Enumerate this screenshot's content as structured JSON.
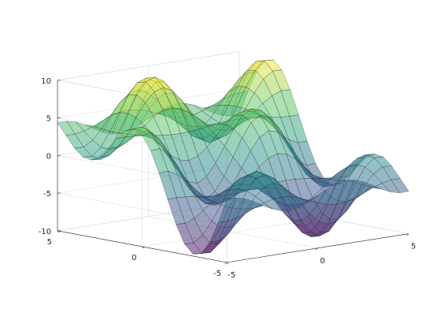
{
  "chart_data": {
    "type": "surface3d",
    "title": "",
    "xlabel": "",
    "ylabel": "",
    "zlabel": "",
    "function": "z = 5 * sin(x) * cos(y) + 5 * sin(y / 2)",
    "x_range": [
      -5,
      5
    ],
    "y_range": [
      -5,
      5
    ],
    "z_range": [
      -10,
      10
    ],
    "grid_size": 21,
    "x_ticks": [
      {
        "value": -5,
        "label": "-5"
      },
      {
        "value": 0,
        "label": "0"
      },
      {
        "value": 5,
        "label": "5"
      }
    ],
    "y_ticks": [
      {
        "value": -5,
        "label": "-5"
      },
      {
        "value": 0,
        "label": "0"
      },
      {
        "value": 5,
        "label": "5"
      }
    ],
    "z_ticks": [
      {
        "value": -10,
        "label": "-10"
      },
      {
        "value": -5,
        "label": "-5"
      },
      {
        "value": 0,
        "label": "0"
      },
      {
        "value": 5,
        "label": "5"
      },
      {
        "value": 10,
        "label": "10"
      }
    ],
    "colormap": [
      "#440154",
      "#3b528b",
      "#21918c",
      "#5ec962",
      "#fde725"
    ],
    "face_alpha": 0.5,
    "grid": true,
    "box": true
  }
}
